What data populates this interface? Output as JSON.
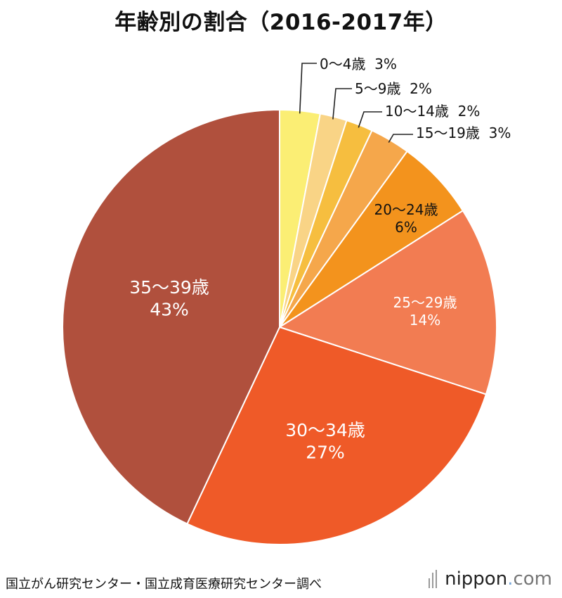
{
  "title": "年齢別の割合（2016-2017年）",
  "chart_data": {
    "type": "pie",
    "title": "年齢別の割合（2016-2017年）",
    "unit": "%",
    "slices": [
      {
        "label": "0〜4歳",
        "value": 3,
        "value_label": "3%",
        "color": "#FBEE74",
        "label_position": "outside"
      },
      {
        "label": "5〜9歳",
        "value": 2,
        "value_label": "2%",
        "color": "#F9D486",
        "label_position": "outside"
      },
      {
        "label": "10〜14歳",
        "value": 2,
        "value_label": "2%",
        "color": "#F6BE3F",
        "label_position": "outside"
      },
      {
        "label": "15〜19歳",
        "value": 3,
        "value_label": "3%",
        "color": "#F5A74B",
        "label_position": "outside"
      },
      {
        "label": "20〜24歳",
        "value": 6,
        "value_label": "6%",
        "color": "#F3931D",
        "label_position": "inside",
        "text_color": "#111111"
      },
      {
        "label": "25〜29歳",
        "value": 14,
        "value_label": "14%",
        "color": "#F27C52",
        "label_position": "inside",
        "text_color": "#ffffff"
      },
      {
        "label": "30〜34歳",
        "value": 27,
        "value_label": "27%",
        "color": "#EF5A28",
        "label_position": "inside",
        "text_color": "#ffffff"
      },
      {
        "label": "35〜39歳",
        "value": 43,
        "value_label": "43%",
        "color": "#B0503D",
        "label_position": "inside",
        "text_color": "#ffffff"
      }
    ],
    "start": "12 o'clock",
    "direction": "clockwise"
  },
  "source": "国立がん研究センター・国立成育医療研究センター調べ",
  "logo": {
    "text": "nippon",
    "dot": ".",
    "suffix": "com"
  }
}
